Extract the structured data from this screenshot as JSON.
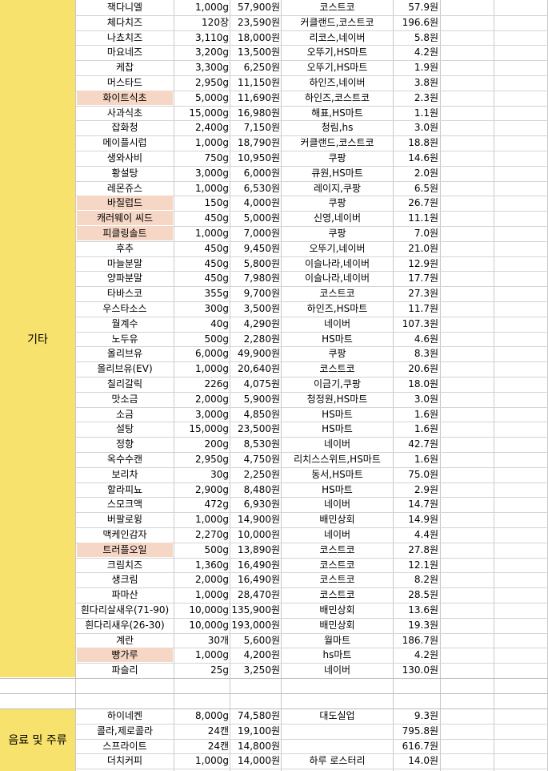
{
  "categories": [
    {
      "label": "기타"
    },
    {
      "label": "음료 및 주류"
    }
  ],
  "colors": {
    "category_fill": "#f7e26d",
    "highlight_fill": "#f6d7c6",
    "grid": "#c9c9c9"
  },
  "rows": [
    {
      "name": "잭다니엘",
      "qty": "1,000g",
      "price": "57,900원",
      "shop": "코스트코",
      "unit": "57.9원",
      "hl": false
    },
    {
      "name": "체다치즈",
      "qty": "120장",
      "price": "23,590원",
      "shop": "커클랜드,코스트코",
      "unit": "196.6원",
      "hl": false
    },
    {
      "name": "나쵸치즈",
      "qty": "3,110g",
      "price": "18,000원",
      "shop": "리코스,네이버",
      "unit": "5.8원",
      "hl": false
    },
    {
      "name": "마요네즈",
      "qty": "3,200g",
      "price": "13,500원",
      "shop": "오뚜기,HS마트",
      "unit": "4.2원",
      "hl": false
    },
    {
      "name": "케찹",
      "qty": "3,300g",
      "price": "6,250원",
      "shop": "오뚜기,HS마트",
      "unit": "1.9원",
      "hl": false
    },
    {
      "name": "머스타드",
      "qty": "2,950g",
      "price": "11,150원",
      "shop": "하인즈,네이버",
      "unit": "3.8원",
      "hl": false
    },
    {
      "name": "화이트식초",
      "qty": "5,000g",
      "price": "11,690원",
      "shop": "하인즈,코스트코",
      "unit": "2.3원",
      "hl": true
    },
    {
      "name": "사과식초",
      "qty": "15,000g",
      "price": "16,980원",
      "shop": "해표,HS마트",
      "unit": "1.1원",
      "hl": false
    },
    {
      "name": "잡화청",
      "qty": "2,400g",
      "price": "7,150원",
      "shop": "청림,hs",
      "unit": "3.0원",
      "hl": false
    },
    {
      "name": "메이플시럽",
      "qty": "1,000g",
      "price": "18,790원",
      "shop": "커클랜드,코스트코",
      "unit": "18.8원",
      "hl": false
    },
    {
      "name": "생와사비",
      "qty": "750g",
      "price": "10,950원",
      "shop": "쿠팡",
      "unit": "14.6원",
      "hl": false
    },
    {
      "name": "황설탕",
      "qty": "3,000g",
      "price": "6,000원",
      "shop": "큐원,HS마트",
      "unit": "2.0원",
      "hl": false
    },
    {
      "name": "레몬쥬스",
      "qty": "1,000g",
      "price": "6,530원",
      "shop": "레이지,쿠팡",
      "unit": "6.5원",
      "hl": false
    },
    {
      "name": "바질럽드",
      "qty": "150g",
      "price": "4,000원",
      "shop": "쿠팡",
      "unit": "26.7원",
      "hl": true
    },
    {
      "name": "캐러웨이 씨드",
      "qty": "450g",
      "price": "5,000원",
      "shop": "신영,네이버",
      "unit": "11.1원",
      "hl": true
    },
    {
      "name": "피클링솔트",
      "qty": "1,000g",
      "price": "7,000원",
      "shop": "쿠팡",
      "unit": "7.0원",
      "hl": true
    },
    {
      "name": "후추",
      "qty": "450g",
      "price": "9,450원",
      "shop": "오뚜기,네이버",
      "unit": "21.0원",
      "hl": false
    },
    {
      "name": "마늘분말",
      "qty": "450g",
      "price": "5,800원",
      "shop": "이슬나라,네이버",
      "unit": "12.9원",
      "hl": false
    },
    {
      "name": "양파분말",
      "qty": "450g",
      "price": "7,980원",
      "shop": "이슬나라,네이버",
      "unit": "17.7원",
      "hl": false
    },
    {
      "name": "타바스코",
      "qty": "355g",
      "price": "9,700원",
      "shop": "코스트코",
      "unit": "27.3원",
      "hl": false
    },
    {
      "name": "우스타소스",
      "qty": "300g",
      "price": "3,500원",
      "shop": "하인즈,HS마트",
      "unit": "11.7원",
      "hl": false
    },
    {
      "name": "월계수",
      "qty": "40g",
      "price": "4,290원",
      "shop": "네이버",
      "unit": "107.3원",
      "hl": false
    },
    {
      "name": "노두유",
      "qty": "500g",
      "price": "2,280원",
      "shop": "HS마트",
      "unit": "4.6원",
      "hl": false
    },
    {
      "name": "올리브유",
      "qty": "6,000g",
      "price": "49,900원",
      "shop": "쿠팡",
      "unit": "8.3원",
      "hl": false
    },
    {
      "name": "올리브유(EV)",
      "qty": "1,000g",
      "price": "20,640원",
      "shop": "코스트코",
      "unit": "20.6원",
      "hl": false
    },
    {
      "name": "칠리갈릭",
      "qty": "226g",
      "price": "4,075원",
      "shop": "이금기,쿠팡",
      "unit": "18.0원",
      "hl": false
    },
    {
      "name": "맛소금",
      "qty": "2,000g",
      "price": "5,900원",
      "shop": "청정원,HS마트",
      "unit": "3.0원",
      "hl": false
    },
    {
      "name": "소금",
      "qty": "3,000g",
      "price": "4,850원",
      "shop": "HS마트",
      "unit": "1.6원",
      "hl": false
    },
    {
      "name": "설탕",
      "qty": "15,000g",
      "price": "23,500원",
      "shop": "HS마트",
      "unit": "1.6원",
      "hl": false
    },
    {
      "name": "정향",
      "qty": "200g",
      "price": "8,530원",
      "shop": "네이버",
      "unit": "42.7원",
      "hl": false
    },
    {
      "name": "옥수수캔",
      "qty": "2,950g",
      "price": "4,750원",
      "shop": "리치스스위트,HS마트",
      "unit": "1.6원",
      "hl": false
    },
    {
      "name": "보리차",
      "qty": "30g",
      "price": "2,250원",
      "shop": "동서,HS마트",
      "unit": "75.0원",
      "hl": false
    },
    {
      "name": "할라피뇨",
      "qty": "2,900g",
      "price": "8,480원",
      "shop": "HS마트",
      "unit": "2.9원",
      "hl": false
    },
    {
      "name": "스모크액",
      "qty": "472g",
      "price": "6,930원",
      "shop": "네이버",
      "unit": "14.7원",
      "hl": false
    },
    {
      "name": "버팔로윙",
      "qty": "1,000g",
      "price": "14,900원",
      "shop": "배민상회",
      "unit": "14.9원",
      "hl": false
    },
    {
      "name": "맥케인감자",
      "qty": "2,270g",
      "price": "10,000원",
      "shop": "네이버",
      "unit": "4.4원",
      "hl": false
    },
    {
      "name": "트러플오일",
      "qty": "500g",
      "price": "13,890원",
      "shop": "코스트코",
      "unit": "27.8원",
      "hl": true
    },
    {
      "name": "크림치즈",
      "qty": "1,360g",
      "price": "16,490원",
      "shop": "코스트코",
      "unit": "12.1원",
      "hl": false
    },
    {
      "name": "생크림",
      "qty": "2,000g",
      "price": "16,490원",
      "shop": "코스트코",
      "unit": "8.2원",
      "hl": false
    },
    {
      "name": "파마산",
      "qty": "1,000g",
      "price": "28,470원",
      "shop": "코스트코",
      "unit": "28.5원",
      "hl": false
    },
    {
      "name": "흰다리살새우(71-90)",
      "qty": "10,000g",
      "price": "135,900원",
      "shop": "배민상회",
      "unit": "13.6원",
      "hl": false
    },
    {
      "name": "흰다리새우(26-30)",
      "qty": "10,000g",
      "price": "193,000원",
      "shop": "배민상회",
      "unit": "19.3원",
      "hl": false
    },
    {
      "name": "계란",
      "qty": "30개",
      "price": "5,600원",
      "shop": "월마트",
      "unit": "186.7원",
      "hl": false
    },
    {
      "name": "빵가루",
      "qty": "1,000g",
      "price": "4,200원",
      "shop": "hs마트",
      "unit": "4.2원",
      "hl": true
    },
    {
      "name": "파슬리",
      "qty": "25g",
      "price": "3,250원",
      "shop": "네이버",
      "unit": "130.0원",
      "hl": false
    }
  ],
  "drink_rows": [
    {
      "name": "하이네켄",
      "qty": "8,000g",
      "price": "74,580원",
      "shop": "대도실업",
      "unit": "9.3원",
      "hl": false
    },
    {
      "name": "콜라,제로콜라",
      "qty": "24캔",
      "price": "19,100원",
      "shop": "",
      "unit": "795.8원",
      "hl": false
    },
    {
      "name": "스프라이트",
      "qty": "24캔",
      "price": "14,800원",
      "shop": "",
      "unit": "616.7원",
      "hl": false
    },
    {
      "name": "더치커피",
      "qty": "1,000g",
      "price": "14,000원",
      "shop": "하루 로스터리",
      "unit": "14.0원",
      "hl": false
    }
  ]
}
